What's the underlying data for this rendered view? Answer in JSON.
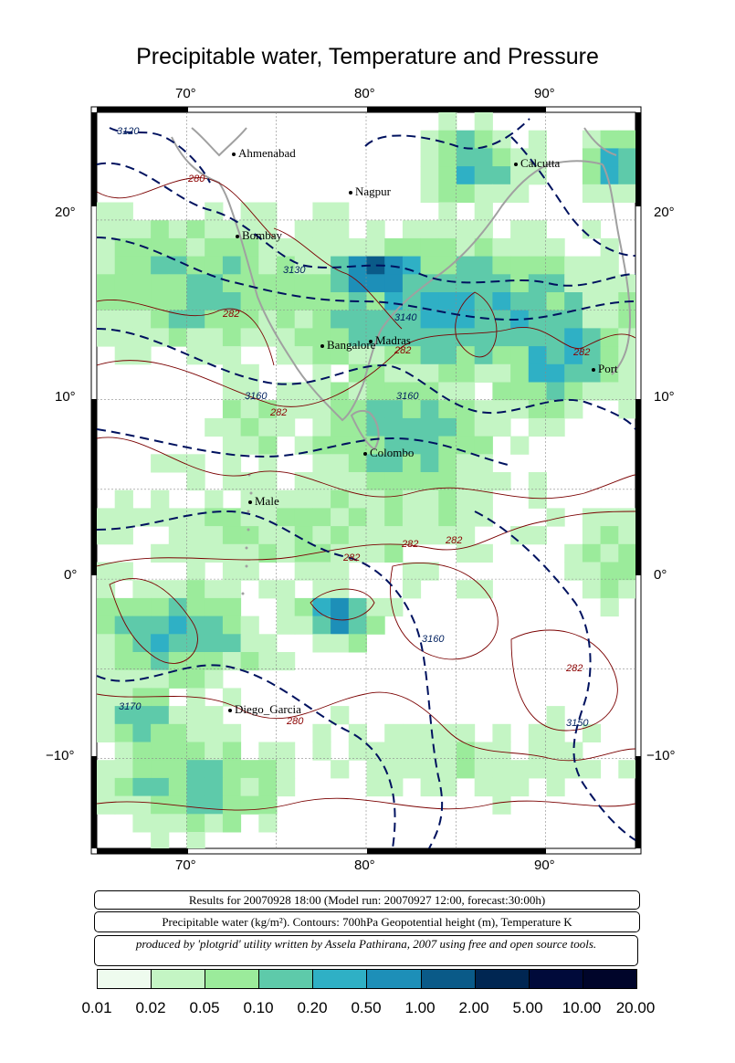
{
  "title": "Precipitable water, Temperature and Pressure",
  "axes": {
    "longitude_ticks": [
      "70°",
      "80°",
      "90°"
    ],
    "latitude_ticks": [
      "20°",
      "10°",
      "0°",
      "−10°"
    ]
  },
  "cities": [
    {
      "name": "Ahmenabad"
    },
    {
      "name": "Nagpur"
    },
    {
      "name": "Calcutta"
    },
    {
      "name": "Bombay"
    },
    {
      "name": "Bangalore"
    },
    {
      "name": "Madras"
    },
    {
      "name": "Port"
    },
    {
      "name": "Colombo"
    },
    {
      "name": "Male"
    },
    {
      "name": "Diego_Garcia"
    }
  ],
  "contour_labels": {
    "temperature": [
      "280",
      "282",
      "282",
      "282",
      "282",
      "282",
      "282",
      "282",
      "280",
      "282"
    ],
    "geopotential": [
      "3120",
      "3130",
      "3140",
      "3160",
      "3160",
      "3160",
      "3170",
      "3150"
    ]
  },
  "info": {
    "results": "Results for 20070928 18:00 (Model run: 20070927 12:00, forecast:30:00h)",
    "legend_line": "Precipitable water (kg/m²).  Contours: 700hPa Geopotential height (m), Temperature K",
    "credit": "produced by 'plotgrid' utility written by Assela Pathirana, 2007 using free and open source tools."
  },
  "colorbar": {
    "labels": [
      "0.01",
      "0.02",
      "0.05",
      "0.10",
      "0.20",
      "0.50",
      "1.00",
      "2.00",
      "5.00",
      "10.00",
      "20.00"
    ],
    "colors": [
      "#eefbee",
      "#c4f5c4",
      "#9beb9b",
      "#5ecaaa",
      "#2fb0c5",
      "#1d8fb8",
      "#0a5a88",
      "#002652",
      "#000a3a",
      "#00052a"
    ]
  },
  "colors": {
    "temperature_contour": "#7a0000",
    "geopotential_contour": "#00125f",
    "coastline": "#a0a0a0"
  }
}
